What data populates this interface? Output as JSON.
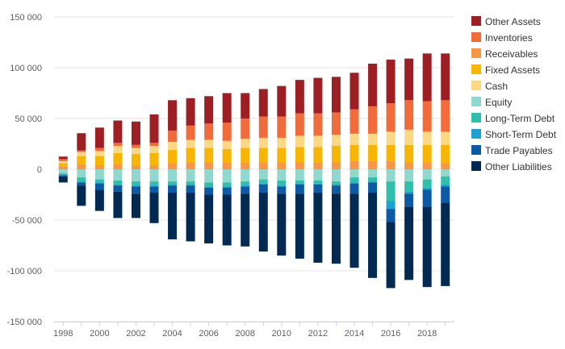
{
  "chart_data": {
    "type": "bar",
    "stacked": true,
    "title": "",
    "xlabel": "",
    "ylabel": "",
    "ylim": [
      -150000,
      150000
    ],
    "yticks": [
      150000,
      100000,
      50000,
      0,
      -50000,
      -100000,
      -150000
    ],
    "ytick_labels": [
      "150 000",
      "100 000",
      "50 000",
      "0",
      "-50 000",
      "-100 000",
      "-150 000"
    ],
    "xticks": [
      "1998",
      "2000",
      "2002",
      "2004",
      "2006",
      "2008",
      "2010",
      "2012",
      "2014",
      "2016",
      "2018"
    ],
    "categories": [
      "1998",
      "1999",
      "2000",
      "2001",
      "2002",
      "2003",
      "2004",
      "2005",
      "2006",
      "2007",
      "2008",
      "2009",
      "2010",
      "2011",
      "2012",
      "2013",
      "2014",
      "2015",
      "2016",
      "2017",
      "2018",
      "2019"
    ],
    "grid": true,
    "legend_position": "right",
    "positive_series": [
      {
        "name": "Receivables",
        "color": "#f79646",
        "values": [
          3000,
          5000,
          4000,
          5000,
          4000,
          4000,
          6000,
          7000,
          7000,
          7000,
          7000,
          7000,
          7000,
          7000,
          7000,
          7000,
          8000,
          8000,
          8000,
          7000,
          7000,
          6000
        ]
      },
      {
        "name": "Fixed Assets",
        "color": "#f7b500",
        "values": [
          3000,
          8000,
          9000,
          11000,
          11000,
          12000,
          13000,
          14000,
          14000,
          13000,
          14000,
          14000,
          14000,
          15000,
          15000,
          16000,
          16000,
          16000,
          16000,
          17000,
          17000,
          18000
        ]
      },
      {
        "name": "Cash",
        "color": "#fdd882",
        "values": [
          2000,
          4000,
          5000,
          7000,
          6000,
          7000,
          8000,
          8000,
          8000,
          8000,
          9000,
          10000,
          10000,
          11000,
          11000,
          11000,
          11000,
          11000,
          13000,
          15000,
          13000,
          13000
        ]
      },
      {
        "name": "Inventories",
        "color": "#f26b3a",
        "values": [
          2000,
          1500,
          3000,
          3000,
          3000,
          3000,
          11000,
          14000,
          16000,
          18000,
          20000,
          21000,
          21000,
          22000,
          22000,
          22000,
          24000,
          27000,
          28000,
          29000,
          30000,
          31000
        ]
      },
      {
        "name": "Other Assets",
        "color": "#9e1f23",
        "values": [
          2500,
          17000,
          20000,
          22000,
          23000,
          28000,
          30000,
          27000,
          27000,
          29000,
          25000,
          27000,
          30000,
          33000,
          35000,
          35000,
          36000,
          42000,
          43000,
          41000,
          47000,
          46000
        ]
      }
    ],
    "negative_series": [
      {
        "name": "Equity",
        "color": "#8fd8cd",
        "values": [
          -4000,
          -8000,
          -10000,
          -11000,
          -12000,
          -12000,
          -12000,
          -12000,
          -13000,
          -13000,
          -12000,
          -10000,
          -11000,
          -11000,
          -11000,
          -12000,
          -8000,
          -8000,
          -12000,
          -12000,
          -10000,
          -7000
        ]
      },
      {
        "name": "Long-Term Debt",
        "color": "#2ebfad",
        "values": [
          -1000,
          -4000,
          -3000,
          -4000,
          -4000,
          -4000,
          -3000,
          -3000,
          -4000,
          -4000,
          -4000,
          -4000,
          -5000,
          -3000,
          -3000,
          -3000,
          -5000,
          -4000,
          -19000,
          -10000,
          -8000,
          -8000
        ]
      },
      {
        "name": "Short-Term Debt",
        "color": "#1ca1d0",
        "values": [
          -1000,
          -1000,
          -1000,
          -1000,
          -1000,
          -1000,
          -1000,
          -1000,
          -1000,
          -1000,
          -1000,
          -1000,
          -1000,
          -1000,
          -1000,
          -1000,
          -1000,
          -1000,
          -8000,
          -2000,
          -2000,
          -2000
        ]
      },
      {
        "name": "Trade Payables",
        "color": "#0c5aa6",
        "values": [
          -1000,
          -3000,
          -6000,
          -6000,
          -7000,
          -6000,
          -7000,
          -7000,
          -7000,
          -7000,
          -7000,
          -8000,
          -7000,
          -9000,
          -8000,
          -8000,
          -10000,
          -10000,
          -13000,
          -13000,
          -17000,
          -16000
        ]
      },
      {
        "name": "Other Liabilities",
        "color": "#002a52",
        "values": [
          -6000,
          -20000,
          -21000,
          -26000,
          -24000,
          -30000,
          -46000,
          -48000,
          -48000,
          -50000,
          -52000,
          -58000,
          -61000,
          -64000,
          -69000,
          -69000,
          -73000,
          -84000,
          -65000,
          -72000,
          -79000,
          -82000
        ]
      }
    ],
    "legend": [
      {
        "name": "Other Assets",
        "color": "#9e1f23"
      },
      {
        "name": "Inventories",
        "color": "#f26b3a"
      },
      {
        "name": "Receivables",
        "color": "#f79646"
      },
      {
        "name": "Fixed Assets",
        "color": "#f7b500"
      },
      {
        "name": "Cash",
        "color": "#fdd882"
      },
      {
        "name": "Equity",
        "color": "#8fd8cd"
      },
      {
        "name": "Long-Term Debt",
        "color": "#2ebfad"
      },
      {
        "name": "Short-Term Debt",
        "color": "#1ca1d0"
      },
      {
        "name": "Trade Payables",
        "color": "#0c5aa6"
      },
      {
        "name": "Other Liabilities",
        "color": "#002a52"
      }
    ]
  }
}
